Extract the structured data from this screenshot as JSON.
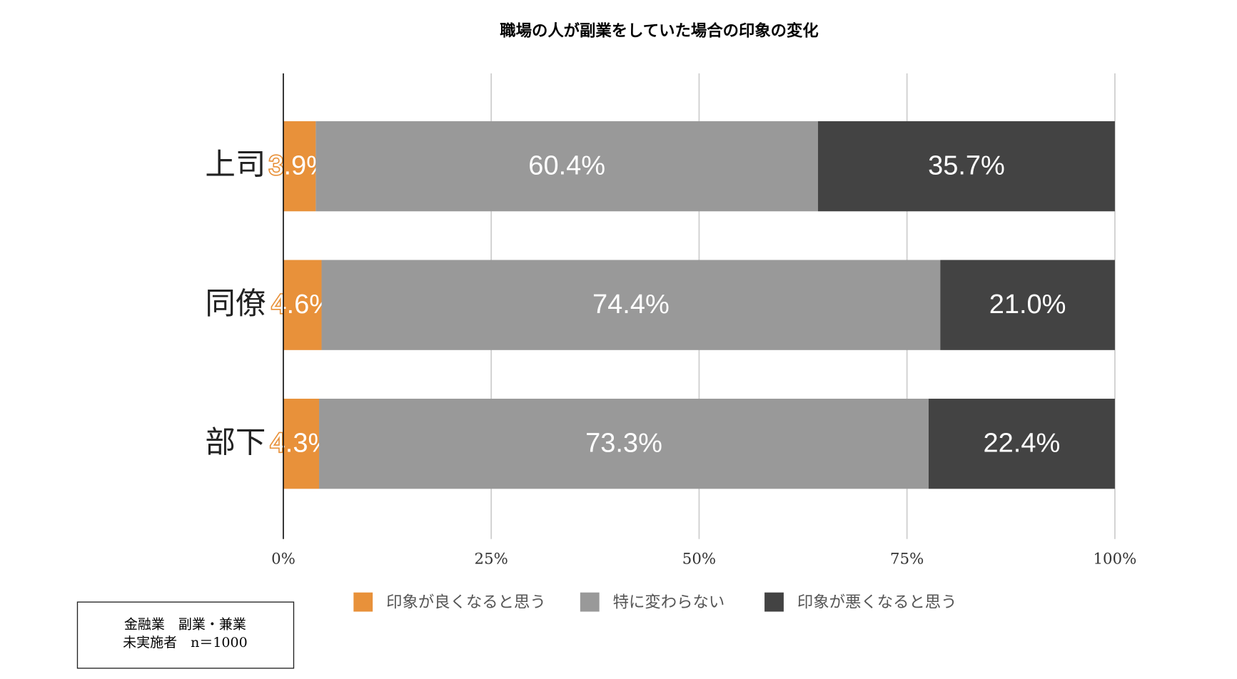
{
  "chart_data": {
    "type": "stacked-barh",
    "title": "職場の人が副業をしていた場合の印象の変化",
    "categories": [
      "上司",
      "同僚",
      "部下"
    ],
    "series": [
      {
        "name": "印象が良くなると思う",
        "color": "#e8913a",
        "values": [
          3.9,
          4.6,
          4.3
        ],
        "value_labels": [
          "3.9%",
          "4.6%",
          "4.3%"
        ]
      },
      {
        "name": "特に変わらない",
        "color": "#999999",
        "values": [
          60.4,
          74.4,
          73.3
        ],
        "value_labels": [
          "60.4%",
          "74.4%",
          "73.3%"
        ]
      },
      {
        "name": "印象が悪くなると思う",
        "color": "#434343",
        "values": [
          35.7,
          21.0,
          22.4
        ],
        "value_labels": [
          "35.7%",
          "21.0%",
          "22.4%"
        ]
      }
    ],
    "xlim": [
      0,
      100
    ],
    "xticks": [
      {
        "value": 0,
        "label": "0%"
      },
      {
        "value": 25,
        "label": "25%"
      },
      {
        "value": 50,
        "label": "50%"
      },
      {
        "value": 75,
        "label": "75%"
      },
      {
        "value": 100,
        "label": "100%"
      }
    ],
    "grid": true,
    "legend": "bottom",
    "annotations": [
      "金融業　副業・兼業",
      "未実施者　n＝1000"
    ]
  }
}
